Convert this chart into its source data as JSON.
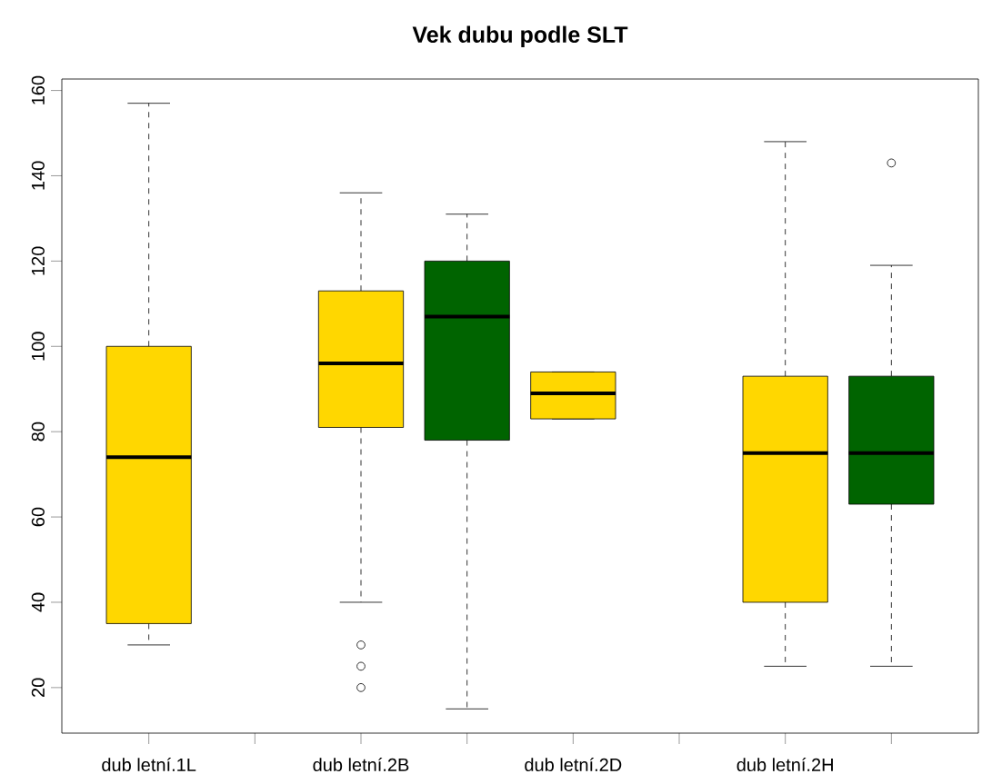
{
  "chart_data": {
    "type": "box",
    "title": "Vek dubu podle SLT",
    "categories": [
      "dub letní.1L",
      null,
      "dub letní.2B",
      null,
      "dub letní.2D",
      null,
      "dub letní.2H",
      null
    ],
    "boxes": [
      {
        "low": 30,
        "q1": 35,
        "median": 74,
        "q3": 100,
        "high": 157
      },
      null,
      {
        "low": 40,
        "q1": 81,
        "median": 96,
        "q3": 113,
        "high": 136,
        "outliers": [
          30,
          25,
          20
        ]
      },
      {
        "low": 15,
        "q1": 78,
        "median": 107,
        "q3": 120,
        "high": 131
      },
      {
        "low": 83,
        "q1": 83,
        "median": 89,
        "q3": 94,
        "high": 94
      },
      null,
      {
        "low": 25,
        "q1": 40,
        "median": 75,
        "q3": 93,
        "high": 148
      },
      {
        "low": 25,
        "q1": 63,
        "median": 75,
        "q3": 93,
        "high": 119,
        "outliers": [
          143
        ]
      }
    ],
    "colors": [
      "#ffd700",
      null,
      "#ffd700",
      "#006400",
      "#ffd700",
      null,
      "#ffd700",
      "#006400"
    ],
    "ylim": [
      9.32,
      162.68
    ],
    "yticks": [
      20,
      40,
      60,
      80,
      100,
      120,
      140,
      160
    ],
    "marker": "circle",
    "grid": false
  }
}
